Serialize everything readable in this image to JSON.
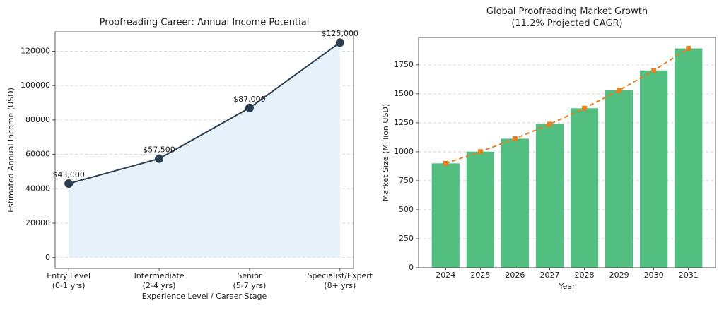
{
  "chart_data": [
    {
      "type": "line",
      "title": "Proofreading Career: Annual Income Potential",
      "x_label": "Experience Level / Career Stage",
      "y_label": "Estimated Annual Income (USD)",
      "categories": [
        "Entry Level\n(0-1 yrs)",
        "Intermediate\n(2-4 yrs)",
        "Senior\n(5-7 yrs)",
        "Specialist/Expert\n(8+ yrs)"
      ],
      "values": [
        43000,
        57500,
        87000,
        125000
      ],
      "value_labels": [
        "$43,000",
        "$57,500",
        "$87,000",
        "$125,000"
      ],
      "color": "#2c3e50",
      "fill_color": "#e6f1fa",
      "ylim": [
        -6250,
        131250
      ],
      "yticks": [
        0,
        20000,
        40000,
        60000,
        80000,
        100000,
        120000
      ],
      "grid": true
    },
    {
      "type": "bar",
      "title": "Global Proofreading Market Growth\n(11.2% Projected CAGR)",
      "x_label": "Year",
      "y_label": "Market Size (Million USD)",
      "categories": [
        "2024",
        "2025",
        "2026",
        "2027",
        "2028",
        "2029",
        "2030",
        "2031"
      ],
      "series": [
        {
          "type": "bar",
          "color": "#52be80",
          "values": [
            900,
            1001,
            1113,
            1238,
            1376,
            1530,
            1702,
            1892
          ]
        },
        {
          "type": "line",
          "color": "#e67e22",
          "values": [
            900,
            1001,
            1113,
            1238,
            1376,
            1530,
            1702,
            1892
          ]
        }
      ],
      "ylim": [
        0,
        1987
      ],
      "yticks": [
        0,
        250,
        500,
        750,
        1000,
        1250,
        1500,
        1750
      ],
      "grid": true
    }
  ]
}
